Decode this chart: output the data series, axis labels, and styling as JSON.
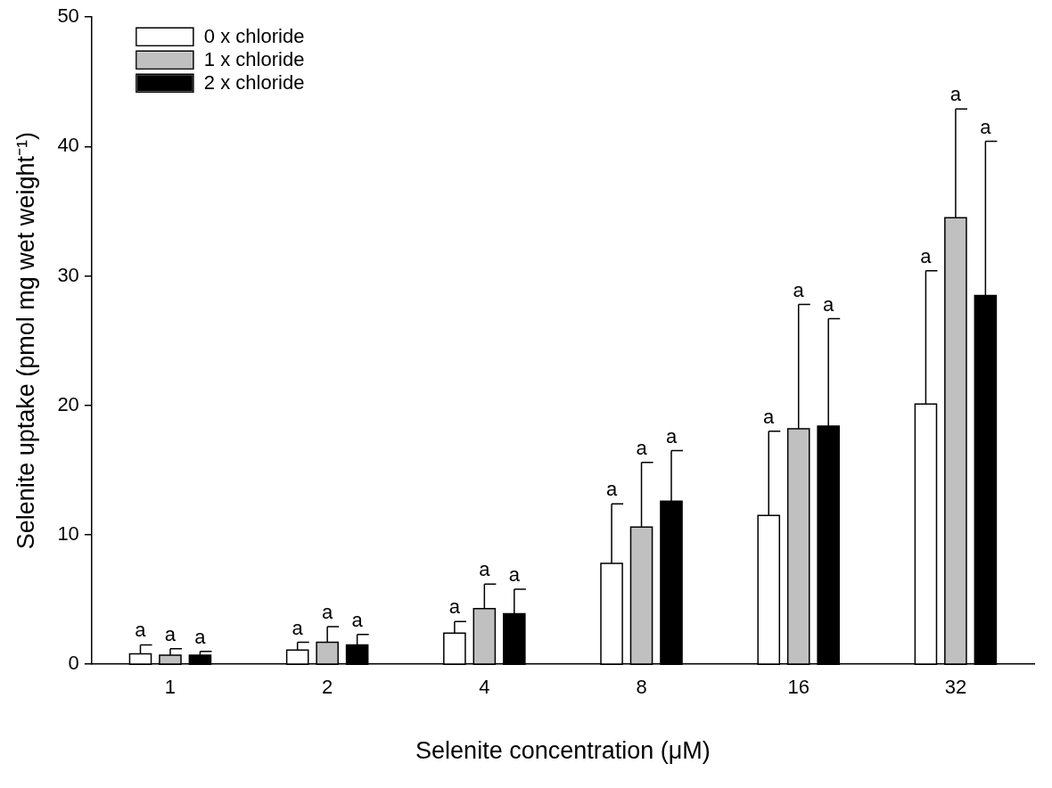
{
  "chart_data": {
    "type": "bar",
    "xlabel": "Selenite concentration (μM)",
    "ylabel": "Selenite uptake (pmol mg wet weight⁻¹)",
    "categories": [
      "1",
      "2",
      "4",
      "8",
      "16",
      "32"
    ],
    "series": [
      {
        "name": "0 x chloride",
        "color": "#ffffff",
        "values": [
          0.8,
          1.1,
          2.4,
          7.8,
          11.5,
          20.1
        ],
        "errors": [
          [
            0.8,
            1.5
          ],
          [
            1.1,
            1.7
          ],
          [
            2.4,
            3.3
          ],
          [
            7.8,
            12.4
          ],
          [
            11.5,
            18.0
          ],
          [
            20.1,
            30.4
          ]
        ]
      },
      {
        "name": "1 x chloride",
        "color": "#c0c0c0",
        "values": [
          0.7,
          1.7,
          4.3,
          10.6,
          18.2,
          34.5
        ],
        "errors": [
          [
            0.7,
            1.2
          ],
          [
            1.7,
            2.9
          ],
          [
            4.3,
            6.2
          ],
          [
            10.6,
            15.6
          ],
          [
            18.2,
            27.8
          ],
          [
            34.5,
            42.9
          ]
        ]
      },
      {
        "name": "2 x chloride",
        "color": "#000000",
        "values": [
          0.7,
          1.5,
          3.9,
          12.6,
          18.4,
          28.5
        ],
        "errors": [
          [
            0.7,
            1.0
          ],
          [
            1.5,
            2.3
          ],
          [
            3.9,
            5.8
          ],
          [
            12.6,
            16.5
          ],
          [
            18.4,
            26.7
          ],
          [
            28.5,
            40.4
          ]
        ]
      }
    ],
    "annotations": [
      "a",
      "a",
      "a",
      "a",
      "a",
      "a",
      "a",
      "a",
      "a",
      "a",
      "a",
      "a",
      "a",
      "a",
      "a",
      "a",
      "a",
      "a"
    ],
    "ylim": [
      0,
      50
    ],
    "yticks": [
      0,
      10,
      20,
      30,
      40,
      50
    ],
    "grid": false,
    "legend": "top left"
  }
}
